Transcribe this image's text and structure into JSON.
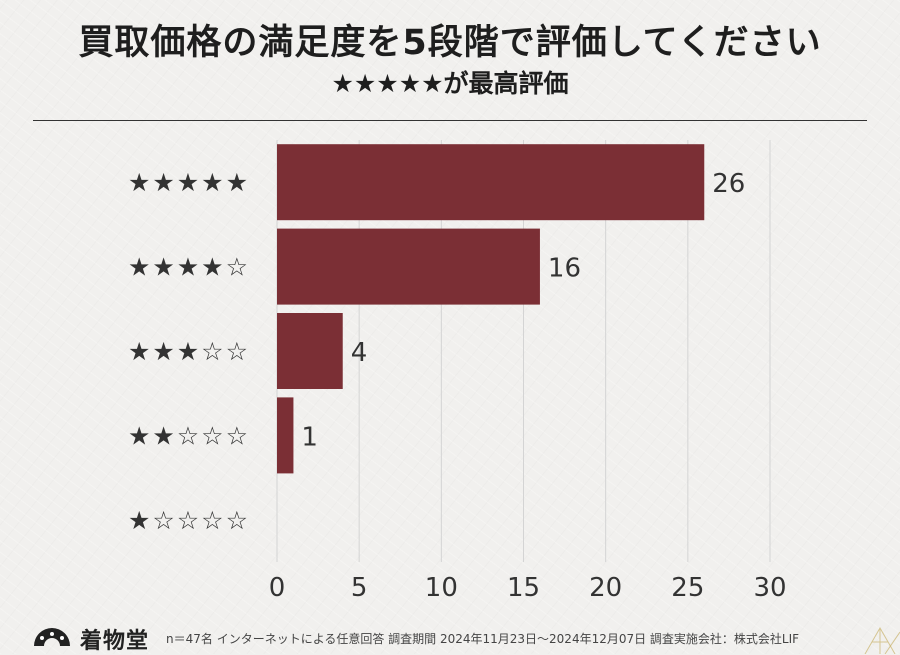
{
  "header": {
    "title": "買取価格の満足度を5段階で評価してください",
    "subtitle": "★★★★★が最高評価"
  },
  "footer": {
    "logo_text": "着物堂",
    "note": "n＝47名 インターネットによる任意回答 調査期間 2024年11月23日～2024年12月07日 調査実施会社：株式会社LIF"
  },
  "colors": {
    "bar": "#7b2f35",
    "grid": "#d4d4d4",
    "text": "#333333"
  },
  "chart_data": {
    "type": "bar",
    "orientation": "horizontal",
    "categories": [
      "★★★★★",
      "★★★★☆",
      "★★★☆☆",
      "★★☆☆☆",
      "★☆☆☆☆"
    ],
    "values": [
      26,
      16,
      4,
      1,
      0
    ],
    "data_labels": [
      "26",
      "16",
      "4",
      "1",
      ""
    ],
    "xlim": [
      0,
      30
    ],
    "xticks": [
      0,
      5,
      10,
      15,
      20,
      25,
      30
    ],
    "grid": true,
    "title": "",
    "xlabel": "",
    "ylabel": ""
  }
}
